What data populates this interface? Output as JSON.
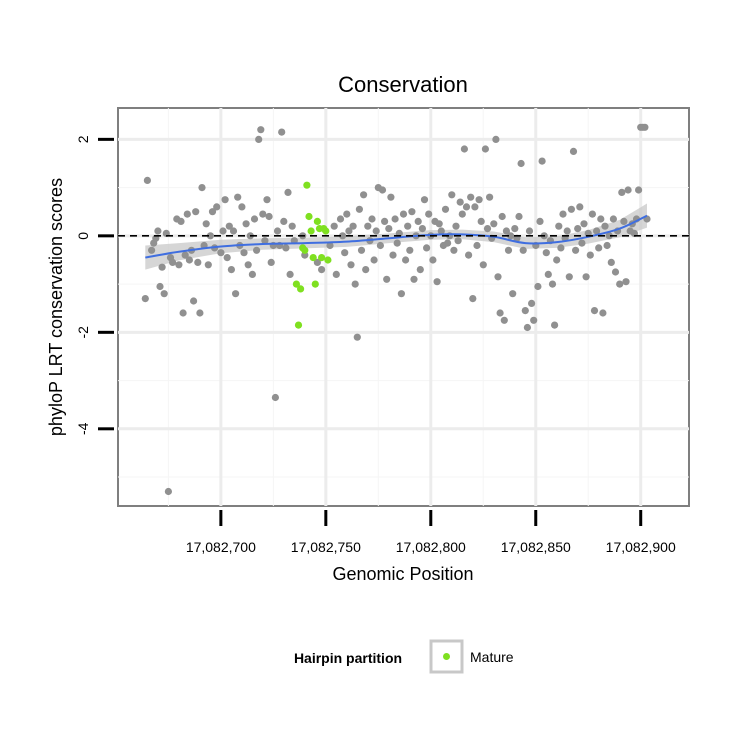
{
  "chart_data": {
    "type": "scatter",
    "title": "Conservation",
    "xlabel": "Genomic Position",
    "ylabel": "phyloP LRT conservation scores",
    "xlim": [
      17082651,
      17082923
    ],
    "ylim": [
      -5.6,
      2.65
    ],
    "x_ticks": [
      17082700,
      17082750,
      17082800,
      17082850,
      17082900
    ],
    "x_tick_labels": [
      "17,082,700",
      "17,082,750",
      "17,082,800",
      "17,082,850",
      "17,082,900"
    ],
    "y_ticks": [
      2,
      0,
      -2,
      -4
    ],
    "y_tick_labels": [
      "2",
      "0",
      "-2",
      "-4"
    ],
    "grid": true,
    "reference_line": {
      "y": 0,
      "style": "dashed"
    },
    "legend": {
      "title": "Hairpin partition",
      "placement": "bottom",
      "entries": [
        {
          "label": "Mature",
          "color": "#7fe020"
        }
      ]
    },
    "colors": {
      "background_points": "#909090",
      "mature_points": "#7fe020",
      "smooth_line": "#3f6ee0",
      "confidence_band": "#c8c8c8"
    },
    "series": [
      {
        "name": "",
        "color": "#909090",
        "points": [
          [
            17082664,
            -1.3
          ],
          [
            17082665,
            1.15
          ],
          [
            17082667,
            -0.3
          ],
          [
            17082668,
            -0.15
          ],
          [
            17082669,
            -0.05
          ],
          [
            17082670,
            0.1
          ],
          [
            17082671,
            -1.05
          ],
          [
            17082672,
            -0.65
          ],
          [
            17082673,
            -1.2
          ],
          [
            17082674,
            0.05
          ],
          [
            17082675,
            -5.3
          ],
          [
            17082676,
            -0.45
          ],
          [
            17082677,
            -0.55
          ],
          [
            17082679,
            0.35
          ],
          [
            17082680,
            -0.6
          ],
          [
            17082681,
            0.3
          ],
          [
            17082682,
            -1.6
          ],
          [
            17082683,
            -0.4
          ],
          [
            17082684,
            0.45
          ],
          [
            17082685,
            -0.5
          ],
          [
            17082686,
            -0.3
          ],
          [
            17082687,
            -1.35
          ],
          [
            17082688,
            0.5
          ],
          [
            17082689,
            -0.55
          ],
          [
            17082690,
            -1.6
          ],
          [
            17082691,
            1.0
          ],
          [
            17082692,
            -0.2
          ],
          [
            17082693,
            0.25
          ],
          [
            17082694,
            -0.6
          ],
          [
            17082695,
            0.0
          ],
          [
            17082696,
            0.5
          ],
          [
            17082697,
            -0.25
          ],
          [
            17082698,
            0.6
          ],
          [
            17082700,
            -0.35
          ],
          [
            17082701,
            0.1
          ],
          [
            17082702,
            0.75
          ],
          [
            17082703,
            -0.45
          ],
          [
            17082704,
            0.2
          ],
          [
            17082705,
            -0.7
          ],
          [
            17082706,
            0.1
          ],
          [
            17082707,
            -1.2
          ],
          [
            17082708,
            0.8
          ],
          [
            17082709,
            -0.2
          ],
          [
            17082710,
            0.6
          ],
          [
            17082711,
            -0.35
          ],
          [
            17082712,
            0.25
          ],
          [
            17082713,
            -0.6
          ],
          [
            17082714,
            0.0
          ],
          [
            17082715,
            -0.8
          ],
          [
            17082716,
            0.35
          ],
          [
            17082717,
            -0.3
          ],
          [
            17082718,
            2.0
          ],
          [
            17082719,
            2.2
          ],
          [
            17082720,
            0.45
          ],
          [
            17082721,
            -0.1
          ],
          [
            17082722,
            0.75
          ],
          [
            17082723,
            0.4
          ],
          [
            17082724,
            -0.55
          ],
          [
            17082725,
            -0.2
          ],
          [
            17082726,
            -3.35
          ],
          [
            17082727,
            0.1
          ],
          [
            17082728,
            -0.2
          ],
          [
            17082729,
            2.15
          ],
          [
            17082730,
            0.3
          ],
          [
            17082731,
            -0.25
          ],
          [
            17082732,
            0.9
          ],
          [
            17082733,
            -0.8
          ],
          [
            17082734,
            0.2
          ],
          [
            17082735,
            -0.1
          ],
          [
            17082739,
            0.0
          ],
          [
            17082740,
            -0.4
          ],
          [
            17082746,
            -0.55
          ],
          [
            17082748,
            -0.7
          ],
          [
            17082752,
            -0.2
          ],
          [
            17082754,
            0.2
          ],
          [
            17082755,
            -0.8
          ],
          [
            17082757,
            0.35
          ],
          [
            17082758,
            0.0
          ],
          [
            17082759,
            -0.35
          ],
          [
            17082760,
            0.45
          ],
          [
            17082761,
            0.1
          ],
          [
            17082762,
            -0.6
          ],
          [
            17082763,
            0.2
          ],
          [
            17082764,
            -1.0
          ],
          [
            17082765,
            -2.1
          ],
          [
            17082766,
            0.55
          ],
          [
            17082767,
            -0.3
          ],
          [
            17082768,
            0.85
          ],
          [
            17082769,
            -0.7
          ],
          [
            17082770,
            0.2
          ],
          [
            17082771,
            -0.1
          ],
          [
            17082772,
            0.35
          ],
          [
            17082773,
            -0.5
          ],
          [
            17082774,
            0.1
          ],
          [
            17082775,
            1.0
          ],
          [
            17082776,
            -0.2
          ],
          [
            17082777,
            0.95
          ],
          [
            17082778,
            0.3
          ],
          [
            17082779,
            -0.9
          ],
          [
            17082780,
            0.15
          ],
          [
            17082781,
            0.8
          ],
          [
            17082782,
            -0.4
          ],
          [
            17082783,
            0.35
          ],
          [
            17082784,
            -0.15
          ],
          [
            17082785,
            0.05
          ],
          [
            17082786,
            -1.2
          ],
          [
            17082787,
            0.45
          ],
          [
            17082788,
            -0.5
          ],
          [
            17082789,
            0.2
          ],
          [
            17082790,
            -0.3
          ],
          [
            17082791,
            0.5
          ],
          [
            17082792,
            -0.9
          ],
          [
            17082793,
            0.0
          ],
          [
            17082794,
            0.3
          ],
          [
            17082795,
            -0.7
          ],
          [
            17082796,
            0.15
          ],
          [
            17082797,
            0.75
          ],
          [
            17082798,
            -0.25
          ],
          [
            17082799,
            0.45
          ],
          [
            17082800,
            0.0
          ],
          [
            17082801,
            -0.5
          ],
          [
            17082802,
            0.3
          ],
          [
            17082803,
            -0.95
          ],
          [
            17082804,
            0.25
          ],
          [
            17082805,
            0.1
          ],
          [
            17082806,
            -0.2
          ],
          [
            17082807,
            0.55
          ],
          [
            17082808,
            -0.15
          ],
          [
            17082809,
            0.0
          ],
          [
            17082810,
            0.85
          ],
          [
            17082811,
            -0.3
          ],
          [
            17082812,
            0.2
          ],
          [
            17082813,
            -0.1
          ],
          [
            17082814,
            0.7
          ],
          [
            17082815,
            0.45
          ],
          [
            17082816,
            1.8
          ],
          [
            17082817,
            0.6
          ],
          [
            17082818,
            -0.4
          ],
          [
            17082819,
            0.8
          ],
          [
            17082820,
            -1.3
          ],
          [
            17082821,
            0.6
          ],
          [
            17082822,
            -0.2
          ],
          [
            17082823,
            0.75
          ],
          [
            17082824,
            0.3
          ],
          [
            17082825,
            -0.6
          ],
          [
            17082826,
            1.8
          ],
          [
            17082827,
            0.15
          ],
          [
            17082828,
            0.8
          ],
          [
            17082829,
            -0.05
          ],
          [
            17082830,
            0.25
          ],
          [
            17082831,
            2.0
          ],
          [
            17082832,
            -0.85
          ],
          [
            17082833,
            -1.6
          ],
          [
            17082834,
            0.4
          ],
          [
            17082835,
            -1.75
          ],
          [
            17082836,
            0.1
          ],
          [
            17082837,
            -0.3
          ],
          [
            17082838,
            0.0
          ],
          [
            17082839,
            -1.2
          ],
          [
            17082840,
            0.15
          ],
          [
            17082841,
            -0.05
          ],
          [
            17082842,
            0.4
          ],
          [
            17082843,
            1.5
          ],
          [
            17082844,
            -0.3
          ],
          [
            17082845,
            -1.55
          ],
          [
            17082846,
            -1.9
          ],
          [
            17082847,
            0.1
          ],
          [
            17082848,
            -1.4
          ],
          [
            17082849,
            -1.75
          ],
          [
            17082850,
            -0.2
          ],
          [
            17082851,
            -1.05
          ],
          [
            17082852,
            0.3
          ],
          [
            17082853,
            1.55
          ],
          [
            17082854,
            0.0
          ],
          [
            17082855,
            -0.35
          ],
          [
            17082856,
            -0.8
          ],
          [
            17082857,
            -0.1
          ],
          [
            17082858,
            -1.0
          ],
          [
            17082859,
            -1.85
          ],
          [
            17082860,
            -0.5
          ],
          [
            17082861,
            0.2
          ],
          [
            17082862,
            -0.25
          ],
          [
            17082863,
            0.45
          ],
          [
            17082864,
            -0.05
          ],
          [
            17082865,
            0.1
          ],
          [
            17082866,
            -0.85
          ],
          [
            17082867,
            0.55
          ],
          [
            17082868,
            1.75
          ],
          [
            17082869,
            -0.3
          ],
          [
            17082870,
            0.15
          ],
          [
            17082871,
            0.6
          ],
          [
            17082872,
            -0.15
          ],
          [
            17082873,
            0.25
          ],
          [
            17082874,
            -0.85
          ],
          [
            17082875,
            0.05
          ],
          [
            17082876,
            -0.4
          ],
          [
            17082877,
            0.45
          ],
          [
            17082878,
            -1.55
          ],
          [
            17082879,
            0.1
          ],
          [
            17082880,
            -0.25
          ],
          [
            17082881,
            0.35
          ],
          [
            17082882,
            -1.6
          ],
          [
            17082883,
            0.2
          ],
          [
            17082884,
            -0.2
          ],
          [
            17082885,
            0.0
          ],
          [
            17082886,
            -0.55
          ],
          [
            17082887,
            0.35
          ],
          [
            17082888,
            -0.75
          ],
          [
            17082889,
            0.1
          ],
          [
            17082890,
            -1.0
          ],
          [
            17082891,
            0.9
          ],
          [
            17082892,
            0.3
          ],
          [
            17082893,
            -0.95
          ],
          [
            17082894,
            0.95
          ],
          [
            17082895,
            0.1
          ],
          [
            17082896,
            0.25
          ],
          [
            17082897,
            0.05
          ],
          [
            17082898,
            0.35
          ],
          [
            17082899,
            0.95
          ],
          [
            17082900,
            2.25
          ],
          [
            17082901,
            2.25
          ],
          [
            17082902,
            2.25
          ],
          [
            17082903,
            0.35
          ]
        ]
      },
      {
        "name": "Mature",
        "color": "#7fe020",
        "points": [
          [
            17082736,
            -1.0
          ],
          [
            17082737,
            -1.85
          ],
          [
            17082738,
            -1.1
          ],
          [
            17082739,
            -0.25
          ],
          [
            17082740,
            -0.3
          ],
          [
            17082741,
            1.05
          ],
          [
            17082742,
            0.4
          ],
          [
            17082743,
            0.1
          ],
          [
            17082744,
            -0.45
          ],
          [
            17082745,
            -1.0
          ],
          [
            17082746,
            0.3
          ],
          [
            17082747,
            0.15
          ],
          [
            17082748,
            -0.45
          ],
          [
            17082749,
            0.15
          ],
          [
            17082750,
            0.1
          ],
          [
            17082751,
            -0.5
          ]
        ]
      }
    ],
    "smooth_curve": {
      "x": [
        17082664,
        17082680,
        17082700,
        17082720,
        17082740,
        17082760,
        17082780,
        17082800,
        17082815,
        17082830,
        17082845,
        17082860,
        17082875,
        17082890,
        17082903
      ],
      "y": [
        -0.45,
        -0.33,
        -0.22,
        -0.17,
        -0.15,
        -0.12,
        -0.05,
        0.02,
        0.03,
        -0.02,
        -0.15,
        -0.13,
        -0.02,
        0.15,
        0.42
      ],
      "band_halfwidth": [
        0.25,
        0.18,
        0.14,
        0.12,
        0.11,
        0.11,
        0.1,
        0.1,
        0.1,
        0.11,
        0.12,
        0.12,
        0.14,
        0.18,
        0.25
      ]
    }
  }
}
